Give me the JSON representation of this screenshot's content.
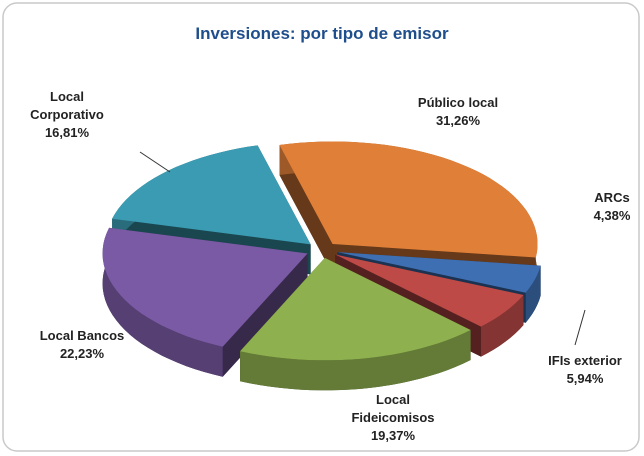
{
  "chart_data": {
    "type": "pie3d",
    "title": "Inversiones: por tipo de emisor",
    "categories": [
      "Público local",
      "ARCs",
      "IFIs exterior",
      "Local Fideicomisos",
      "Local Bancos",
      "Local Corporativo"
    ],
    "values": [
      31.26,
      4.38,
      5.94,
      19.37,
      22.23,
      16.81
    ],
    "value_labels": [
      "31,26%",
      "4,38%",
      "5,94%",
      "19,37%",
      "22,23%",
      "16,81%"
    ],
    "colors": [
      "#e07f38",
      "#3f6fb3",
      "#bd4a47",
      "#8eb04e",
      "#7a5aa5",
      "#3a9bb2"
    ]
  }
}
